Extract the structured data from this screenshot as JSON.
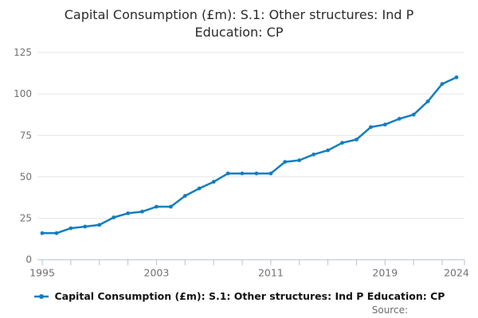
{
  "title": "Capital Consumption (£m): S.1: Other structures: Ind P Education: CP",
  "legend": {
    "label": "Capital Consumption (£m): S.1: Other structures: Ind P Education: CP"
  },
  "source_label": "Source:",
  "colors": {
    "line": "#147dbe",
    "grid": "#e6e6e6",
    "axis": "#b5c2cc",
    "tick_label": "#707070",
    "title_text": "#2b2b2b",
    "legend_text": "#121212"
  },
  "chart_data": {
    "type": "line",
    "title": "Capital Consumption (£m): S.1: Other structures: Ind P Education: CP",
    "x": [
      1995,
      1996,
      1997,
      1998,
      1999,
      2000,
      2001,
      2002,
      2003,
      2004,
      2005,
      2006,
      2007,
      2008,
      2009,
      2010,
      2011,
      2012,
      2013,
      2014,
      2015,
      2016,
      2017,
      2018,
      2019,
      2020,
      2021,
      2022,
      2023,
      2024
    ],
    "series": [
      {
        "name": "Capital Consumption (£m): S.1: Other structures: Ind P Education: CP",
        "values": [
          16,
          16,
          19,
          20,
          21,
          25.5,
          28,
          29,
          32,
          32,
          38.5,
          43,
          47,
          52,
          52,
          52,
          52,
          59,
          60,
          63.5,
          66,
          70.5,
          72.5,
          80,
          81.5,
          85,
          87.5,
          95.5,
          106,
          110
        ]
      }
    ],
    "xlabel": "",
    "ylabel": "",
    "ylim": [
      0,
      125
    ],
    "yticks": [
      0,
      25,
      50,
      75,
      100,
      125
    ],
    "xtick_labels": [
      1995,
      2003,
      2011,
      2019,
      2024
    ],
    "minor_xtick_interval_years": 2,
    "grid": true,
    "legend_position": "bottom",
    "marker": "dot"
  }
}
